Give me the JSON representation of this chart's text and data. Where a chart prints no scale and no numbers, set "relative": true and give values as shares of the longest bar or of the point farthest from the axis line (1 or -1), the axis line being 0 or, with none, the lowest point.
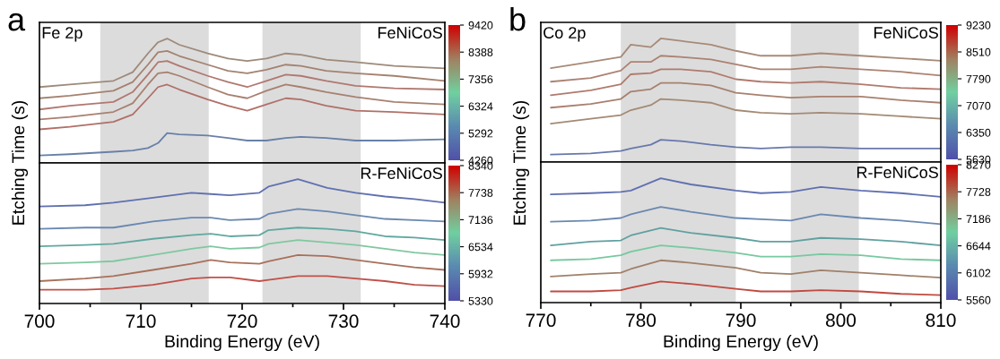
{
  "chart_data": [
    {
      "type": "line",
      "relative": true,
      "title": "a",
      "ylabel": "Etching Time (s)",
      "annotations": [
        "Fe 2p",
        "FeNiCoS"
      ],
      "tick_labels": false,
      "xlim": [
        700,
        740
      ],
      "clim": [
        4260,
        9420
      ],
      "cticks": [
        4260,
        5292,
        6324,
        7356,
        8388,
        9420
      ],
      "bands": [
        {
          "axis": "x",
          "from": 706,
          "to": 716.7,
          "color": "#dcdcdc"
        },
        {
          "axis": "x",
          "from": 722,
          "to": 731.7,
          "color": "#dcdcdc"
        }
      ],
      "x": [
        700,
        703,
        707.3,
        709.2,
        710.7,
        711.7,
        712.6,
        713.8,
        716.6,
        718.6,
        720.5,
        722.4,
        724.3,
        725.8,
        728.3,
        731.2,
        735,
        740
      ],
      "series": [
        {
          "color": "#9e8a7a",
          "values": [
            0.61,
            0.63,
            0.66,
            0.73,
            0.88,
            0.97,
            1.0,
            0.95,
            0.88,
            0.84,
            0.82,
            0.84,
            0.88,
            0.87,
            0.83,
            0.81,
            0.78,
            0.76
          ]
        },
        {
          "color": "#a48270",
          "values": [
            0.52,
            0.54,
            0.58,
            0.65,
            0.79,
            0.89,
            0.9,
            0.86,
            0.79,
            0.74,
            0.72,
            0.75,
            0.79,
            0.78,
            0.74,
            0.72,
            0.7,
            0.66
          ]
        },
        {
          "color": "#b07870",
          "values": [
            0.43,
            0.46,
            0.49,
            0.57,
            0.71,
            0.81,
            0.82,
            0.78,
            0.7,
            0.65,
            0.61,
            0.66,
            0.71,
            0.7,
            0.66,
            0.62,
            0.6,
            0.59
          ]
        },
        {
          "color": "#a88070",
          "values": [
            0.35,
            0.37,
            0.41,
            0.48,
            0.63,
            0.72,
            0.73,
            0.7,
            0.61,
            0.55,
            0.52,
            0.58,
            0.63,
            0.61,
            0.57,
            0.53,
            0.49,
            0.47
          ]
        },
        {
          "color": "#b07068",
          "values": [
            0.27,
            0.29,
            0.33,
            0.39,
            0.52,
            0.61,
            0.63,
            0.59,
            0.51,
            0.46,
            0.42,
            0.47,
            0.52,
            0.51,
            0.46,
            0.42,
            0.41,
            0.39
          ]
        },
        {
          "color": "#6880a8",
          "values": [
            0.06,
            0.07,
            0.09,
            0.1,
            0.12,
            0.16,
            0.24,
            0.23,
            0.22,
            0.2,
            0.18,
            0.18,
            0.2,
            0.21,
            0.2,
            0.18,
            0.18,
            0.19
          ]
        }
      ]
    },
    {
      "type": "line",
      "relative": true,
      "xlabel": "Binding Energy (eV)",
      "annotations": [
        "R-FeNiCoS"
      ],
      "tick_labels": "x",
      "xlim": [
        700,
        740
      ],
      "xticks": [
        700,
        {
          "value": 705,
          "label": null
        },
        710,
        {
          "value": 715,
          "label": null
        },
        720,
        {
          "value": 725,
          "label": null
        },
        730,
        {
          "value": 735,
          "label": null
        },
        740
      ],
      "clim": [
        5330,
        8340
      ],
      "cticks": [
        5330,
        5932,
        6534,
        7136,
        7738,
        8340
      ],
      "bands": [
        {
          "axis": "x",
          "from": 706,
          "to": 716.7,
          "color": "#dcdcdc"
        },
        {
          "axis": "x",
          "from": 722,
          "to": 731.7,
          "color": "#dcdcdc"
        }
      ],
      "x": [
        700,
        704.5,
        707.3,
        711.2,
        715,
        716.9,
        718.8,
        721.7,
        722.6,
        725.5,
        728.4,
        731.2,
        734.1,
        737,
        740
      ],
      "series": [
        {
          "color": "#6070b0",
          "values": [
            0.78,
            0.79,
            0.81,
            0.85,
            0.89,
            0.88,
            0.87,
            0.89,
            0.94,
            1.0,
            0.93,
            0.89,
            0.86,
            0.84,
            0.81
          ]
        },
        {
          "color": "#6a88b0",
          "values": [
            0.6,
            0.61,
            0.61,
            0.66,
            0.69,
            0.69,
            0.67,
            0.68,
            0.72,
            0.76,
            0.74,
            0.71,
            0.68,
            0.67,
            0.66
          ]
        },
        {
          "color": "#60a8a0",
          "values": [
            0.46,
            0.47,
            0.48,
            0.52,
            0.55,
            0.56,
            0.54,
            0.55,
            0.59,
            0.61,
            0.6,
            0.58,
            0.54,
            0.53,
            0.51
          ]
        },
        {
          "color": "#80c8a0",
          "values": [
            0.32,
            0.33,
            0.34,
            0.39,
            0.44,
            0.46,
            0.44,
            0.45,
            0.48,
            0.51,
            0.49,
            0.47,
            0.44,
            0.41,
            0.39
          ]
        },
        {
          "color": "#a8705a",
          "values": [
            0.18,
            0.2,
            0.22,
            0.27,
            0.32,
            0.35,
            0.33,
            0.32,
            0.34,
            0.39,
            0.38,
            0.35,
            0.32,
            0.29,
            0.27
          ]
        },
        {
          "color": "#c05048",
          "values": [
            0.11,
            0.11,
            0.12,
            0.15,
            0.2,
            0.21,
            0.21,
            0.18,
            0.19,
            0.22,
            0.22,
            0.2,
            0.18,
            0.15,
            0.14
          ]
        }
      ]
    },
    {
      "type": "line",
      "relative": true,
      "title": "b",
      "ylabel": "Etching Time (s)",
      "annotations": [
        "Co 2p",
        "FeNiCoS"
      ],
      "tick_labels": false,
      "xlim": [
        770,
        810
      ],
      "clim": [
        5630,
        9230
      ],
      "cticks": [
        5630,
        6350,
        7070,
        7790,
        8510,
        9230
      ],
      "bands": [
        {
          "axis": "x",
          "from": 778,
          "to": 789.5,
          "color": "#dcdcdc"
        },
        {
          "axis": "x",
          "from": 795,
          "to": 801.8,
          "color": "#dcdcdc"
        }
      ],
      "x": [
        771,
        775,
        778,
        779,
        781,
        782,
        784,
        787,
        789.5,
        792,
        795,
        798,
        802,
        806,
        810
      ],
      "series": [
        {
          "color": "#a88a78",
          "values": [
            0.76,
            0.81,
            0.85,
            0.95,
            0.93,
            1.0,
            0.98,
            0.95,
            0.9,
            0.86,
            0.86,
            0.88,
            0.86,
            0.84,
            0.82
          ]
        },
        {
          "color": "#ac8272",
          "values": [
            0.65,
            0.68,
            0.74,
            0.81,
            0.81,
            0.86,
            0.85,
            0.83,
            0.79,
            0.75,
            0.75,
            0.77,
            0.75,
            0.73,
            0.7
          ]
        },
        {
          "color": "#b07a6e",
          "values": [
            0.54,
            0.58,
            0.63,
            0.71,
            0.72,
            0.75,
            0.75,
            0.73,
            0.67,
            0.65,
            0.64,
            0.65,
            0.63,
            0.6,
            0.59
          ]
        },
        {
          "color": "#a8806e",
          "values": [
            0.44,
            0.47,
            0.51,
            0.57,
            0.59,
            0.64,
            0.64,
            0.62,
            0.56,
            0.54,
            0.52,
            0.53,
            0.53,
            0.5,
            0.48
          ]
        },
        {
          "color": "#a48a74",
          "values": [
            0.31,
            0.35,
            0.38,
            0.42,
            0.46,
            0.51,
            0.5,
            0.48,
            0.42,
            0.4,
            0.39,
            0.4,
            0.39,
            0.37,
            0.35
          ]
        },
        {
          "color": "#6878ac",
          "values": [
            0.06,
            0.07,
            0.09,
            0.11,
            0.14,
            0.18,
            0.17,
            0.14,
            0.12,
            0.11,
            0.12,
            0.12,
            0.11,
            0.11,
            0.11
          ]
        }
      ]
    },
    {
      "type": "line",
      "relative": true,
      "xlabel": "Binding Energy (eV)",
      "annotations": [
        "R-FeNiCoS"
      ],
      "tick_labels": "x",
      "xlim": [
        770,
        810
      ],
      "xticks": [
        770,
        {
          "value": 775,
          "label": null
        },
        780,
        {
          "value": 785,
          "label": null
        },
        790,
        {
          "value": 795,
          "label": null
        },
        800,
        {
          "value": 805,
          "label": null
        },
        810
      ],
      "clim": [
        5560,
        8270
      ],
      "cticks": [
        5560,
        6102,
        6644,
        7186,
        7728,
        8270
      ],
      "bands": [
        {
          "axis": "x",
          "from": 778,
          "to": 789.5,
          "color": "#dcdcdc"
        },
        {
          "axis": "x",
          "from": 795,
          "to": 801.8,
          "color": "#dcdcdc"
        }
      ],
      "x": [
        771,
        775,
        778,
        779,
        782,
        785,
        789.5,
        792,
        795,
        798,
        802,
        806,
        810
      ],
      "series": [
        {
          "color": "#6070b0",
          "values": [
            0.87,
            0.88,
            0.89,
            0.9,
            1.0,
            0.95,
            0.9,
            0.88,
            0.89,
            0.93,
            0.9,
            0.88,
            0.85
          ]
        },
        {
          "color": "#6a88b0",
          "values": [
            0.65,
            0.66,
            0.68,
            0.71,
            0.77,
            0.73,
            0.68,
            0.67,
            0.66,
            0.71,
            0.68,
            0.66,
            0.63
          ]
        },
        {
          "color": "#60a0a0",
          "values": [
            0.46,
            0.49,
            0.5,
            0.54,
            0.6,
            0.56,
            0.52,
            0.49,
            0.49,
            0.52,
            0.51,
            0.49,
            0.46
          ]
        },
        {
          "color": "#78c8a0",
          "values": [
            0.34,
            0.35,
            0.38,
            0.41,
            0.46,
            0.44,
            0.4,
            0.37,
            0.37,
            0.39,
            0.38,
            0.35,
            0.34
          ]
        },
        {
          "color": "#a0806a",
          "values": [
            0.21,
            0.23,
            0.24,
            0.27,
            0.34,
            0.32,
            0.28,
            0.24,
            0.23,
            0.26,
            0.24,
            0.22,
            0.2
          ]
        },
        {
          "color": "#c04a40",
          "values": [
            0.09,
            0.09,
            0.1,
            0.12,
            0.17,
            0.15,
            0.11,
            0.09,
            0.09,
            0.1,
            0.09,
            0.07,
            0.06
          ]
        }
      ]
    }
  ]
}
